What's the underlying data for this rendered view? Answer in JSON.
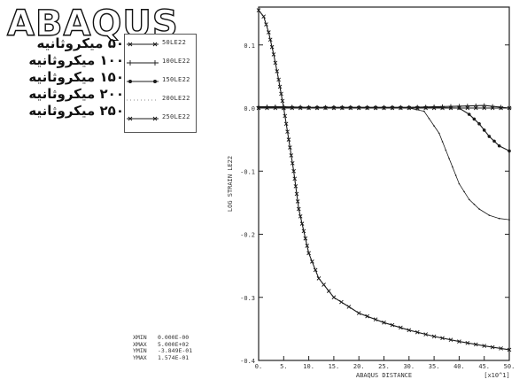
{
  "logo_text": "ABAQUS",
  "persian_labels": [
    "۵۰ میکروثانیه",
    "۱۰۰ میکروثانیه",
    "۱۵۰ میکروثانیه",
    "۲۰۰ میکروثانیه",
    "۲۵۰ میکروثانیه"
  ],
  "stats": [
    {
      "label": "XMIN",
      "value": "0.000E-00"
    },
    {
      "label": "XMAX",
      "value": "5.000E+02"
    },
    {
      "label": "YMIN",
      "value": "-3.849E-01"
    },
    {
      "label": "YMAX",
      "value": "1.574E-01"
    }
  ],
  "colors": {
    "line": "#1a1a1a",
    "axis": "#222222",
    "background": "#ffffff"
  },
  "chart_data": {
    "type": "line",
    "xlabel": "ABAQUS DISTANCE",
    "ylabel": "LOG STRAIN LE22",
    "x_multiplier": "[x10^1]",
    "xlim": [
      0,
      50
    ],
    "ylim": [
      -0.4,
      0.16
    ],
    "x_ticks": [
      "0.",
      "5.",
      "10.",
      "15.",
      "20.",
      "25.",
      "30.",
      "35.",
      "40.",
      "45.",
      "50."
    ],
    "y_ticks": [
      {
        "value": 0.1,
        "label": "0.1"
      },
      {
        "value": 0.0,
        "label": "0.0"
      },
      {
        "value": -0.1,
        "label": "-0.1"
      },
      {
        "value": -0.2,
        "label": "-0.2"
      },
      {
        "value": -0.3,
        "label": "-0.3"
      },
      {
        "value": -0.4,
        "label": "-0.4"
      }
    ],
    "series": [
      {
        "name": "50LE22",
        "marker": "x",
        "x": [
          0,
          1,
          2,
          3,
          4,
          5,
          6,
          7,
          8,
          10,
          12,
          15,
          18,
          20,
          25,
          30,
          35,
          40,
          45,
          50
        ],
        "y": [
          0.155,
          0.145,
          0.12,
          0.085,
          0.045,
          0.0,
          -0.05,
          -0.1,
          -0.16,
          -0.23,
          -0.27,
          -0.3,
          -0.315,
          -0.325,
          -0.34,
          -0.352,
          -0.362,
          -0.37,
          -0.377,
          -0.383
        ]
      },
      {
        "name": "100LE22",
        "marker": "+",
        "x": [
          0,
          5,
          10,
          15,
          20,
          25,
          30,
          35,
          40,
          45,
          50
        ],
        "y": [
          0.002,
          0.002,
          0.001,
          0.001,
          0.001,
          0.001,
          0.001,
          0.002,
          0.003,
          0.004,
          0.0
        ]
      },
      {
        "name": "150LE22",
        "marker": "o",
        "x": [
          0,
          5,
          10,
          15,
          20,
          25,
          30,
          35,
          40,
          42,
          44,
          46,
          48,
          50
        ],
        "y": [
          0.001,
          0.001,
          0.001,
          0.001,
          0.001,
          0.001,
          0.001,
          0.001,
          0.0,
          -0.01,
          -0.025,
          -0.045,
          -0.06,
          -0.068
        ]
      },
      {
        "name": "200LE22",
        "marker": ".",
        "x": [
          0,
          5,
          10,
          15,
          20,
          25,
          30,
          33,
          36,
          38,
          40,
          42,
          44,
          46,
          48,
          50
        ],
        "y": [
          0.0,
          0.0,
          0.0,
          0.0,
          0.0,
          0.0,
          0.0,
          -0.005,
          -0.04,
          -0.08,
          -0.12,
          -0.145,
          -0.16,
          -0.17,
          -0.175,
          -0.177
        ]
      },
      {
        "name": "250LE22",
        "marker": "x",
        "x": [
          0,
          5,
          10,
          15,
          20,
          25,
          30,
          35,
          40,
          45,
          50
        ],
        "y": [
          0.0,
          0.0,
          0.0,
          0.0,
          0.0,
          0.0,
          0.0,
          0.0,
          0.0,
          0.0,
          0.0
        ]
      }
    ]
  }
}
